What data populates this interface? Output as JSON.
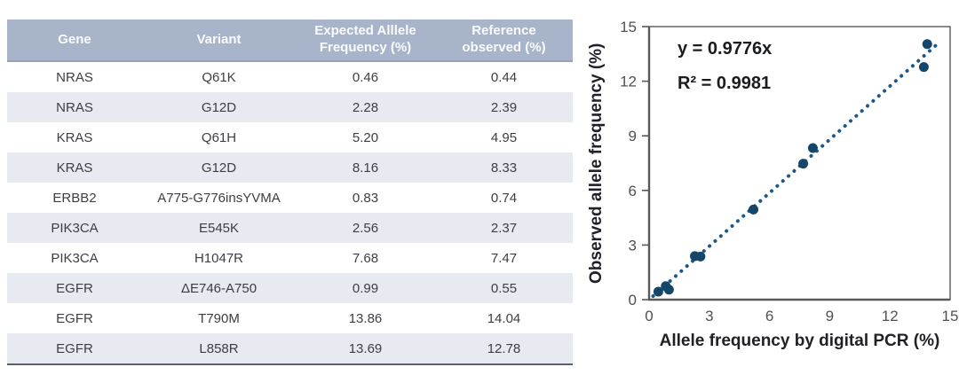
{
  "table": {
    "headers": [
      "Gene",
      "Variant",
      "Expected Alllele Frequency (%)",
      "Reference observed (%)"
    ],
    "rows": [
      {
        "gene": "NRAS",
        "variant": "Q61K",
        "expected": "0.46",
        "observed": "0.44"
      },
      {
        "gene": "NRAS",
        "variant": "G12D",
        "expected": "2.28",
        "observed": "2.39"
      },
      {
        "gene": "KRAS",
        "variant": "Q61H",
        "expected": "5.20",
        "observed": "4.95"
      },
      {
        "gene": "KRAS",
        "variant": "G12D",
        "expected": "8.16",
        "observed": "8.33"
      },
      {
        "gene": "ERBB2",
        "variant": "A775-G776insYVMA",
        "expected": "0.83",
        "observed": "0.74"
      },
      {
        "gene": "PIK3CA",
        "variant": "E545K",
        "expected": "2.56",
        "observed": "2.37"
      },
      {
        "gene": "PIK3CA",
        "variant": "H1047R",
        "expected": "7.68",
        "observed": "7.47"
      },
      {
        "gene": "EGFR",
        "variant": "ΔE746-A750",
        "expected": "0.99",
        "observed": "0.55"
      },
      {
        "gene": "EGFR",
        "variant": "T790M",
        "expected": "13.86",
        "observed": "14.04"
      },
      {
        "gene": "EGFR",
        "variant": "L858R",
        "expected": "13.69",
        "observed": "12.78"
      }
    ],
    "colors": {
      "header_bg": "#a8b4ca",
      "header_text": "#fafbfd",
      "row_alt_bg": "#e8eaf2",
      "cell_text": "#3c3e44",
      "bottom_border": "#5e6069"
    }
  },
  "chart_data": {
    "type": "scatter",
    "title": "",
    "xlabel": "Allele frequency by digital PCR (%)",
    "ylabel": "Observed allele frequency (%)",
    "xlim": [
      0,
      15
    ],
    "ylim": [
      0,
      15
    ],
    "xticks": [
      0,
      3,
      6,
      9,
      12,
      15
    ],
    "yticks": [
      0,
      3,
      6,
      9,
      12,
      15
    ],
    "grid": false,
    "legend_position": "none",
    "points": [
      {
        "x": 0.46,
        "y": 0.44
      },
      {
        "x": 2.28,
        "y": 2.39
      },
      {
        "x": 5.2,
        "y": 4.95
      },
      {
        "x": 8.16,
        "y": 8.33
      },
      {
        "x": 0.83,
        "y": 0.74
      },
      {
        "x": 2.56,
        "y": 2.37
      },
      {
        "x": 7.68,
        "y": 7.47
      },
      {
        "x": 0.99,
        "y": 0.55
      },
      {
        "x": 13.86,
        "y": 14.04
      },
      {
        "x": 13.69,
        "y": 12.78
      }
    ],
    "trendline": {
      "equation": "y = 0.9776x",
      "r_squared": "R² = 0.9981",
      "slope": 0.9776,
      "x_start": 0.2,
      "x_end": 14.4,
      "style": "dotted"
    },
    "colors": {
      "point": "#134668",
      "trendline": "#1c5787",
      "axis": "#58595b",
      "tick_label": "#4f5154",
      "axis_label": "#1f2126",
      "annotation_text": "#1b1c20"
    }
  }
}
